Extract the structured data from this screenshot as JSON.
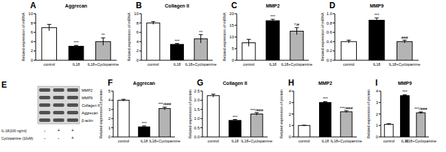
{
  "chart_data": [
    {
      "type": "bar",
      "panel": "A",
      "title": "Aggrecan",
      "y_label": "Related expression of mRNA",
      "categories": [
        "control",
        "IL18",
        "IL18+Cyclopamine"
      ],
      "values": [
        7.0,
        3.0,
        4.0
      ],
      "errors": [
        0.7,
        0.2,
        0.8
      ],
      "annotations": [
        null,
        "***",
        "**"
      ],
      "colors": [
        "#ffffff",
        "#000000",
        "#b4b4b4"
      ],
      "ylim": [
        0,
        10
      ],
      "yticks": [
        0,
        2,
        4,
        6,
        8,
        10
      ],
      "grid": false
    },
    {
      "type": "bar",
      "panel": "B",
      "title": "Collagen II",
      "y_label": "Related expression of mRNA",
      "categories": [
        "control",
        "IL18",
        "IL18+Cyclopamine"
      ],
      "values": [
        8.0,
        3.4,
        4.6
      ],
      "errors": [
        0.3,
        0.2,
        0.9
      ],
      "annotations": [
        null,
        "***",
        "**"
      ],
      "colors": [
        "#ffffff",
        "#000000",
        "#b4b4b4"
      ],
      "ylim": [
        0,
        10
      ],
      "yticks": [
        0,
        2,
        4,
        6,
        8,
        10
      ],
      "grid": false
    },
    {
      "type": "bar",
      "panel": "C",
      "title": "MMP2",
      "y_label": "Related expression of mRNA",
      "categories": [
        "control",
        "IL18",
        "IL18+Cyclopamine"
      ],
      "values": [
        7.5,
        17.0,
        12.5
      ],
      "errors": [
        1.5,
        0.6,
        1.5
      ],
      "annotations": [
        null,
        "***",
        "*/#"
      ],
      "colors": [
        "#ffffff",
        "#000000",
        "#b4b4b4"
      ],
      "ylim": [
        0,
        20
      ],
      "yticks": [
        0,
        5,
        10,
        15,
        20
      ],
      "grid": false
    },
    {
      "type": "bar",
      "panel": "D",
      "title": "MMP9",
      "y_label": "Related expression of mRNA",
      "categories": [
        "control",
        "IL18",
        "IL18+Cyclopamine"
      ],
      "values": [
        0.4,
        0.86,
        0.4
      ],
      "errors": [
        0.03,
        0.05,
        0.03
      ],
      "annotations": [
        null,
        "***",
        "###"
      ],
      "colors": [
        "#ffffff",
        "#000000",
        "#b4b4b4"
      ],
      "ylim": [
        0,
        1
      ],
      "yticks": [
        {
          "value": 0,
          "label": "0.0"
        },
        0.2,
        0.4,
        0.6,
        0.8,
        {
          "value": 1,
          "label": "1.0"
        }
      ],
      "grid": false
    },
    {
      "type": "bar",
      "panel": "F",
      "title": "Aggrecan",
      "y_label": "Related expression of protein",
      "categories": [
        "control",
        "IL18",
        "IL18+Cyclopamine"
      ],
      "values": [
        4.0,
        1.1,
        3.1
      ],
      "errors": [
        0.1,
        0.1,
        0.15
      ],
      "annotations": [
        null,
        "***",
        "***/###"
      ],
      "colors": [
        "#ffffff",
        "#000000",
        "#b4b4b4"
      ],
      "ylim": [
        0,
        5
      ],
      "yticks": [
        0,
        1,
        2,
        3,
        4,
        5
      ],
      "grid": false
    },
    {
      "type": "bar",
      "panel": "G",
      "title": "Collagen II",
      "y_label": "Related expression of protein",
      "categories": [
        "control",
        "IL18",
        "IL18+Cyclopamine"
      ],
      "values": [
        2.25,
        0.9,
        1.25
      ],
      "errors": [
        0.08,
        0.05,
        0.07
      ],
      "annotations": [
        null,
        "***",
        "***/###"
      ],
      "colors": [
        "#ffffff",
        "#000000",
        "#b4b4b4"
      ],
      "ylim": [
        0,
        2.5
      ],
      "yticks": [
        {
          "value": 0,
          "label": "0.0"
        },
        0.5,
        {
          "value": 1,
          "label": "1.0"
        },
        1.5,
        {
          "value": 2,
          "label": "2.0"
        },
        2.5
      ],
      "grid": false
    },
    {
      "type": "bar",
      "panel": "H",
      "title": "MMP2",
      "y_label": "Related expression of protein",
      "categories": [
        "control",
        "IL18",
        "IL18+Cyclopamine"
      ],
      "values": [
        1.0,
        3.0,
        2.2
      ],
      "errors": [
        0.02,
        0.08,
        0.08
      ],
      "annotations": [
        null,
        "***",
        "***/###"
      ],
      "colors": [
        "#ffffff",
        "#000000",
        "#b4b4b4"
      ],
      "ylim": [
        0,
        4
      ],
      "yticks": [
        0,
        1,
        2,
        3,
        4
      ],
      "grid": false
    },
    {
      "type": "bar",
      "panel": "I",
      "title": "MMP9",
      "y_label": "Related expression of protein",
      "categories": [
        "control",
        "IL18",
        "IL18+Cyclopamine"
      ],
      "values": [
        1.1,
        3.6,
        2.1
      ],
      "errors": [
        0.05,
        0.08,
        0.08
      ],
      "annotations": [
        null,
        "***",
        "***/###"
      ],
      "colors": [
        "#ffffff",
        "#000000",
        "#b4b4b4"
      ],
      "ylim": [
        0,
        4
      ],
      "yticks": [
        0,
        1,
        2,
        3,
        4
      ],
      "grid": false
    }
  ],
  "blot": {
    "panel": "E",
    "rows": [
      "MMP2",
      "MMP9",
      "Collagen II",
      "Aggrecan",
      "β-actin"
    ],
    "treatments": [
      {
        "label": "IL-18(100 ng/ml)",
        "signs": [
          "-",
          "+",
          "+"
        ]
      },
      {
        "label": "Cyclopamine (10uM)",
        "signs": [
          "-",
          "-",
          "+"
        ]
      }
    ]
  }
}
